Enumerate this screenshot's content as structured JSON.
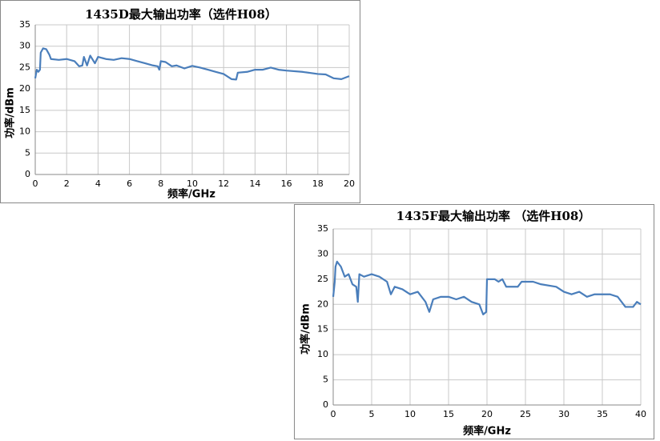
{
  "chart_data": [
    {
      "type": "line",
      "title": "1435D最大输出功率（选件H08）",
      "x_label": "频率/GHz",
      "y_label": "功率/dBm",
      "xlim": [
        0,
        20
      ],
      "xticks": [
        0,
        2,
        4,
        6,
        8,
        10,
        12,
        14,
        16,
        18,
        20
      ],
      "ylim": [
        0,
        35
      ],
      "yticks": [
        0,
        5,
        10,
        15,
        20,
        25,
        30,
        35
      ],
      "grid": true,
      "color": "#4a7ebb",
      "x": [
        0,
        0.1,
        0.2,
        0.3,
        0.35,
        0.5,
        0.7,
        0.9,
        1.0,
        1.5,
        2,
        2.5,
        2.8,
        3.0,
        3.1,
        3.3,
        3.5,
        3.8,
        4,
        4.5,
        5,
        5.5,
        6,
        6.5,
        7,
        7.5,
        7.8,
        7.9,
        8,
        8.3,
        8.7,
        9,
        9.5,
        10,
        10.5,
        11,
        11.5,
        12,
        12.5,
        12.8,
        12.9,
        13.5,
        14,
        14.5,
        15,
        15.5,
        16,
        17,
        18,
        18.5,
        19,
        19.5,
        20
      ],
      "values": [
        22.5,
        24.5,
        24,
        24.5,
        28.5,
        29.5,
        29.3,
        28,
        27,
        26.8,
        27,
        26.5,
        25.3,
        25.5,
        27.5,
        25.5,
        27.8,
        26,
        27.5,
        27,
        26.8,
        27.2,
        27,
        26.5,
        26,
        25.5,
        25.3,
        24.5,
        26.5,
        26.3,
        25.3,
        25.5,
        24.8,
        25.4,
        25,
        24.5,
        24,
        23.5,
        22.3,
        22.2,
        23.8,
        24,
        24.5,
        24.5,
        25,
        24.5,
        24.3,
        24,
        23.5,
        23.4,
        22.5,
        22.3,
        23
      ]
    },
    {
      "type": "line",
      "title": "1435F最大输出功率 （选件H08）",
      "x_label": "频率/GHz",
      "y_label": "功率/dBm",
      "xlim": [
        0,
        40
      ],
      "xticks": [
        0,
        5,
        10,
        15,
        20,
        25,
        30,
        35,
        40
      ],
      "ylim": [
        0,
        35
      ],
      "yticks": [
        0,
        5,
        10,
        15,
        20,
        25,
        30,
        35
      ],
      "grid": true,
      "color": "#4a7ebb",
      "x": [
        0,
        0.2,
        0.3,
        0.5,
        1,
        1.5,
        2,
        2.5,
        3,
        3.2,
        3.4,
        4,
        5,
        6,
        7,
        7.5,
        8,
        9,
        10,
        11,
        12,
        12.5,
        13,
        14,
        15,
        16,
        17,
        18,
        19,
        19.5,
        19.9,
        20,
        21,
        21.5,
        22,
        22.5,
        24,
        24.5,
        26,
        27,
        29,
        30,
        31,
        32,
        33,
        34,
        36,
        37,
        38,
        39,
        39.5,
        40
      ],
      "values": [
        21.5,
        24.5,
        27.5,
        28.5,
        27.5,
        25.5,
        26,
        24,
        23.5,
        20.5,
        26,
        25.5,
        26,
        25.5,
        24.5,
        22,
        23.5,
        23,
        22,
        22.5,
        20.5,
        18.5,
        21,
        21.5,
        21.5,
        21,
        21.5,
        20.5,
        20,
        18,
        18.5,
        25,
        25,
        24.5,
        25,
        23.5,
        23.5,
        24.5,
        24.5,
        24,
        23.5,
        22.5,
        22,
        22.5,
        21.5,
        22,
        22,
        21.5,
        19.5,
        19.5,
        20.5,
        20
      ]
    }
  ]
}
